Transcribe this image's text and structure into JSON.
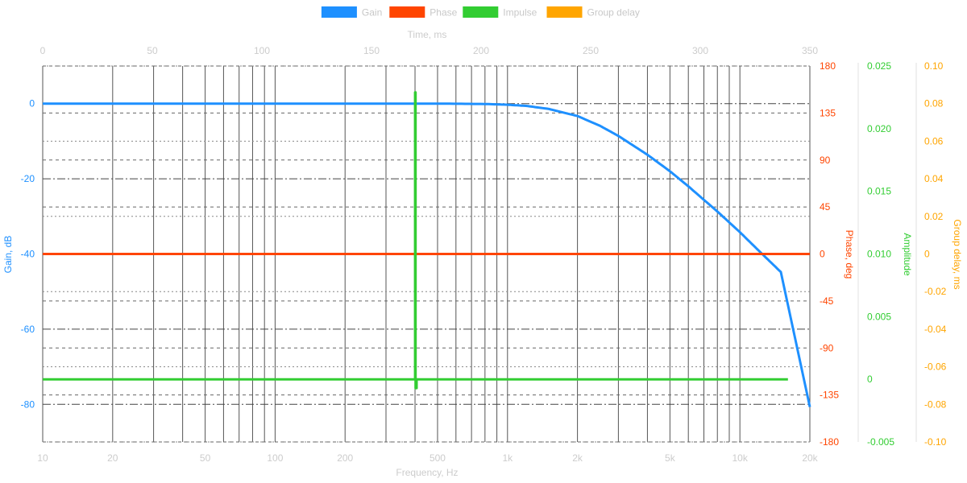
{
  "chart_data": {
    "type": "line",
    "legend": {
      "placement": "top-center",
      "items": [
        {
          "label": "Gain",
          "color": "#1e90ff"
        },
        {
          "label": "Phase",
          "color": "#ff4500"
        },
        {
          "label": "Impulse",
          "color": "#32cd32"
        },
        {
          "label": "Group delay",
          "color": "#ffa500"
        }
      ]
    },
    "axes": {
      "frequency": {
        "title": "Frequency, Hz",
        "scale": "log",
        "range": [
          10,
          20000
        ],
        "ticks": [
          10,
          20,
          50,
          100,
          200,
          500,
          1000,
          2000,
          5000,
          10000,
          20000
        ],
        "tick_labels": [
          "10",
          "20",
          "50",
          "100",
          "200",
          "500",
          "1k",
          "2k",
          "5k",
          "10k",
          "20k"
        ],
        "color": "#cccccc"
      },
      "time": {
        "title": "Time, ms",
        "scale": "linear",
        "range": [
          0,
          350
        ],
        "ticks": [
          0,
          50,
          100,
          150,
          200,
          250,
          300,
          350
        ],
        "tick_labels": [
          "0",
          "50",
          "100",
          "150",
          "200",
          "250",
          "300",
          "350"
        ],
        "color": "#cccccc"
      },
      "gain": {
        "title": "Gain, dB",
        "range": [
          -90,
          10
        ],
        "ticks": [
          0,
          -20,
          -40,
          -60,
          -80
        ],
        "tick_labels": [
          "0",
          "-20",
          "-40",
          "-60",
          "-80"
        ],
        "color": "#1e90ff"
      },
      "phase": {
        "title": "Phase, deg",
        "range": [
          -180,
          180
        ],
        "ticks": [
          180,
          135,
          90,
          45,
          0,
          -45,
          -90,
          -135,
          -180
        ],
        "tick_labels": [
          "180",
          "135",
          "90",
          "45",
          "0",
          "-45",
          "-90",
          "-135",
          "-180"
        ],
        "color": "#ff4500"
      },
      "amplitude": {
        "title": "Amplitude",
        "range": [
          -0.005,
          0.025
        ],
        "ticks": [
          0.025,
          0.02,
          0.015,
          0.01,
          0.005,
          0,
          -0.005
        ],
        "tick_labels": [
          "0.025",
          "0.020",
          "0.015",
          "0.010",
          "0.005",
          "0",
          "-0.005"
        ],
        "color": "#32cd32"
      },
      "group_delay": {
        "title": "Group delay, ms",
        "range": [
          -0.1,
          0.1
        ],
        "ticks": [
          0.1,
          0.08,
          0.06,
          0.04,
          0.02,
          0,
          -0.02,
          -0.04,
          -0.06,
          -0.08,
          -0.1
        ],
        "tick_labels": [
          "0.10",
          "0.08",
          "0.06",
          "0.04",
          "0.02",
          "0",
          "-0.02",
          "-0.04",
          "-0.06",
          "-0.08",
          "-0.10"
        ],
        "color": "#ffa500"
      }
    },
    "series": [
      {
        "name": "Gain",
        "color": "#1e90ff",
        "x_axis": "frequency",
        "y_axis": "gain",
        "x": [
          10,
          100,
          500,
          800,
          1000,
          1200,
          1500,
          2000,
          2500,
          3000,
          4000,
          5000,
          6000,
          8000,
          10000,
          12000,
          15000,
          20000
        ],
        "y": [
          0,
          0,
          0,
          -0.1,
          -0.3,
          -0.6,
          -1.4,
          -3.3,
          -5.9,
          -8.6,
          -13.6,
          -18.0,
          -22.0,
          -28.7,
          -34.2,
          -39.0,
          -44.8,
          -80.7
        ]
      },
      {
        "name": "Phase",
        "color": "#ff4500",
        "x_axis": "frequency",
        "y_axis": "phase",
        "x": [
          10,
          20000
        ],
        "y": [
          0,
          0
        ]
      },
      {
        "name": "Impulse",
        "color": "#32cd32",
        "x_axis": "time",
        "y_axis": "amplitude",
        "x": [
          0,
          169.9,
          169.9,
          170.1,
          170.1,
          170.6,
          170.6,
          340
        ],
        "y": [
          0,
          0,
          0.0229,
          0.0229,
          -0.0007,
          -0.0007,
          0,
          0
        ]
      },
      {
        "name": "Group delay",
        "color": "#ffa500",
        "x_axis": "frequency",
        "y_axis": "group_delay",
        "x": [],
        "y": []
      }
    ]
  }
}
